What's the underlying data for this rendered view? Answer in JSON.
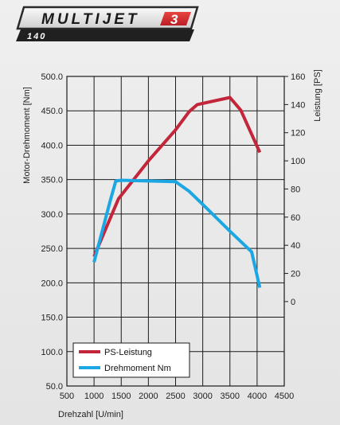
{
  "badge": {
    "title": "MULTIJET",
    "number": "3",
    "subtitle": "140"
  },
  "chart_data": {
    "type": "line",
    "xlabel": "Drehzahl [U/min]",
    "ylabel_left": "Motor-Drehmoment [Nm]",
    "ylabel_right": "Leistung [PS]",
    "x_ticks": [
      "500",
      "1000",
      "1500",
      "2000",
      "2500",
      "3000",
      "3500",
      "4000",
      "4500"
    ],
    "y_left_ticks": [
      "500.0",
      "450.0",
      "400.0",
      "350.0",
      "300.0",
      "250.0",
      "200.0",
      "150.0",
      "100.0",
      "50.0"
    ],
    "y_right_ticks": [
      "160",
      "140",
      "120",
      "100",
      "80",
      "60",
      "40",
      "20",
      "0"
    ],
    "xlim": [
      500,
      4500
    ],
    "ylim_left": [
      50,
      500
    ],
    "ylim_right": [
      -60,
      160
    ],
    "grid": true,
    "legend_position": "bottom-left",
    "series": [
      {
        "name": "PS-Leistung",
        "axis": "right",
        "color": "#c3263a",
        "x": [
          1000,
          1450,
          2000,
          2500,
          2750,
          2900,
          3500,
          3700,
          4050
        ],
        "y": [
          32,
          73,
          100,
          122,
          135,
          140,
          145,
          136,
          106
        ]
      },
      {
        "name": "Drehmoment Nm",
        "axis": "left",
        "color": "#1aa7e3",
        "x": [
          1000,
          1300,
          1400,
          1500,
          2000,
          2500,
          2750,
          3000,
          3500,
          3900,
          4050
        ],
        "y": [
          230,
          320,
          348,
          349,
          348,
          347,
          333,
          314,
          275,
          245,
          193
        ]
      }
    ]
  }
}
